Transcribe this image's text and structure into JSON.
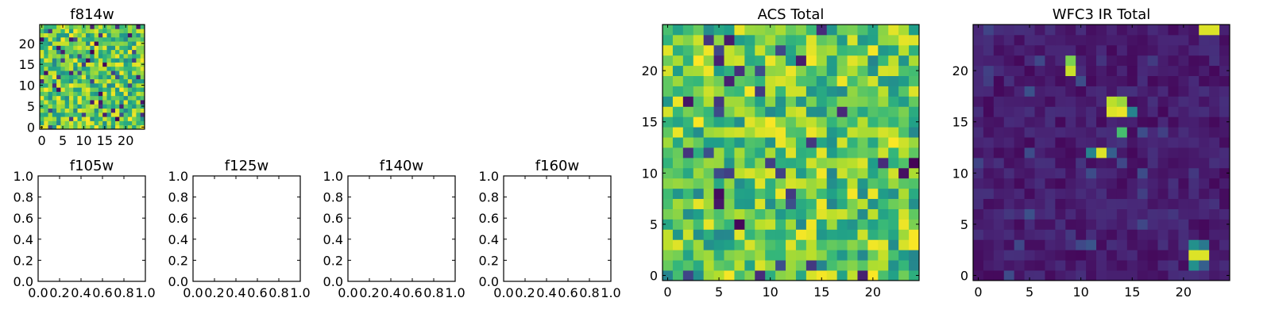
{
  "chart_data": [
    {
      "type": "heatmap",
      "id": "f814w",
      "title": "f814w",
      "colormap": "viridis",
      "xlim": [
        -0.5,
        24.5
      ],
      "ylim": [
        -0.5,
        24.5
      ],
      "xticks": [
        0,
        5,
        10,
        15,
        20
      ],
      "yticks": [
        0,
        5,
        10,
        15,
        20
      ],
      "grid_size": [
        25,
        25
      ],
      "seed": 7,
      "pattern": "noise"
    },
    {
      "type": "empty",
      "id": "f105w",
      "title": "f105w",
      "xlim": [
        0,
        1
      ],
      "ylim": [
        0,
        1
      ],
      "xticks": [
        "0.0",
        "0.2",
        "0.4",
        "0.6",
        "0.8",
        "1.0"
      ],
      "yticks": [
        "0.0",
        "0.2",
        "0.4",
        "0.6",
        "0.8",
        "1.0"
      ]
    },
    {
      "type": "empty",
      "id": "f125w",
      "title": "f125w",
      "xlim": [
        0,
        1
      ],
      "ylim": [
        0,
        1
      ],
      "xticks": [
        "0.0",
        "0.2",
        "0.4",
        "0.6",
        "0.8",
        "1.0"
      ],
      "yticks": [
        "0.0",
        "0.2",
        "0.4",
        "0.6",
        "0.8",
        "1.0"
      ]
    },
    {
      "type": "empty",
      "id": "f140w",
      "title": "f140w",
      "xlim": [
        0,
        1
      ],
      "ylim": [
        0,
        1
      ],
      "xticks": [
        "0.0",
        "0.2",
        "0.4",
        "0.6",
        "0.8",
        "1.0"
      ],
      "yticks": [
        "0.0",
        "0.2",
        "0.4",
        "0.6",
        "0.8",
        "1.0"
      ]
    },
    {
      "type": "empty",
      "id": "f160w",
      "title": "f160w",
      "xlim": [
        0,
        1
      ],
      "ylim": [
        0,
        1
      ],
      "xticks": [
        "0.0",
        "0.2",
        "0.4",
        "0.6",
        "0.8",
        "1.0"
      ],
      "yticks": [
        "0.0",
        "0.2",
        "0.4",
        "0.6",
        "0.8",
        "1.0"
      ]
    },
    {
      "type": "heatmap",
      "id": "acs-total",
      "title": "ACS Total",
      "colormap": "viridis",
      "xlim": [
        -0.5,
        24.5
      ],
      "ylim": [
        -0.5,
        24.5
      ],
      "xticks": [
        0,
        5,
        10,
        15,
        20
      ],
      "yticks": [
        0,
        5,
        10,
        15,
        20
      ],
      "grid_size": [
        25,
        25
      ],
      "seed": 19,
      "pattern": "noise"
    },
    {
      "type": "heatmap",
      "id": "wfc3-ir-total",
      "title": "WFC3 IR Total",
      "colormap": "viridis",
      "xlim": [
        -0.5,
        24.5
      ],
      "ylim": [
        -0.5,
        24.5
      ],
      "xticks": [
        0,
        5,
        10,
        15,
        20
      ],
      "yticks": [
        0,
        5,
        10,
        15,
        20
      ],
      "grid_size": [
        25,
        25
      ],
      "seed": 31,
      "pattern": "background",
      "bright_pixels": [
        {
          "x": 22,
          "y": 24,
          "v": 0.95
        },
        {
          "x": 23,
          "y": 24,
          "v": 0.95
        },
        {
          "x": 9,
          "y": 21,
          "v": 0.8
        },
        {
          "x": 9,
          "y": 20,
          "v": 0.92
        },
        {
          "x": 13,
          "y": 17,
          "v": 0.9
        },
        {
          "x": 14,
          "y": 17,
          "v": 0.85
        },
        {
          "x": 13,
          "y": 16,
          "v": 0.95
        },
        {
          "x": 14,
          "y": 16,
          "v": 0.97
        },
        {
          "x": 15,
          "y": 16,
          "v": 0.45
        },
        {
          "x": 14,
          "y": 14,
          "v": 0.7
        },
        {
          "x": 11,
          "y": 12,
          "v": 0.45
        },
        {
          "x": 12,
          "y": 12,
          "v": 0.95
        },
        {
          "x": 13,
          "y": 12,
          "v": 0.3
        },
        {
          "x": 21,
          "y": 3,
          "v": 0.5
        },
        {
          "x": 22,
          "y": 3,
          "v": 0.4
        },
        {
          "x": 21,
          "y": 2,
          "v": 0.95
        },
        {
          "x": 22,
          "y": 2,
          "v": 0.95
        },
        {
          "x": 21,
          "y": 1,
          "v": 0.5
        },
        {
          "x": 22,
          "y": 1,
          "v": 0.3
        }
      ]
    }
  ]
}
